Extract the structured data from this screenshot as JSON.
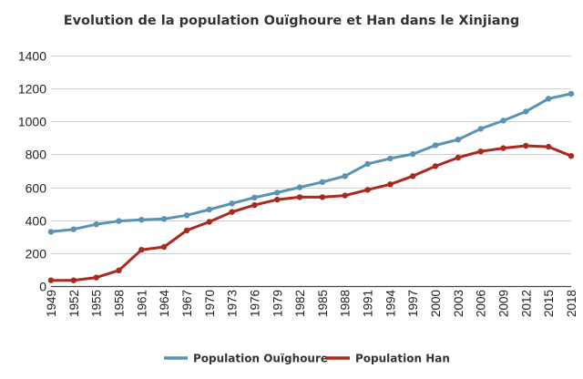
{
  "chart_data": {
    "type": "line",
    "title": "Evolution de la population Ouïghoure et Han dans le Xinjiang",
    "xlabel": "",
    "ylabel": "",
    "ylim": [
      0,
      1400
    ],
    "yticks": [
      0,
      200,
      400,
      600,
      800,
      1000,
      1200,
      1400
    ],
    "grid": true,
    "legend_position": "bottom",
    "categories": [
      "1949",
      "1952",
      "1955",
      "1958",
      "1961",
      "1964",
      "1967",
      "1970",
      "1973",
      "1976",
      "1979",
      "1982",
      "1985",
      "1988",
      "1991",
      "1994",
      "1997",
      "2000",
      "2003",
      "2006",
      "2009",
      "2012",
      "2015",
      "2018"
    ],
    "series": [
      {
        "name": "Population Ouïghoure",
        "color": "#5a92b3",
        "values": [
          330,
          345,
          375,
          395,
          403,
          408,
          430,
          465,
          502,
          538,
          568,
          600,
          632,
          668,
          742,
          775,
          802,
          855,
          890,
          955,
          1005,
          1060,
          1138,
          1168
        ]
      },
      {
        "name": "Population Han",
        "color": "#a9291f",
        "values": [
          35,
          35,
          52,
          95,
          220,
          238,
          338,
          390,
          450,
          492,
          525,
          540,
          540,
          550,
          585,
          618,
          668,
          728,
          780,
          818,
          838,
          852,
          846,
          790
        ]
      }
    ]
  }
}
